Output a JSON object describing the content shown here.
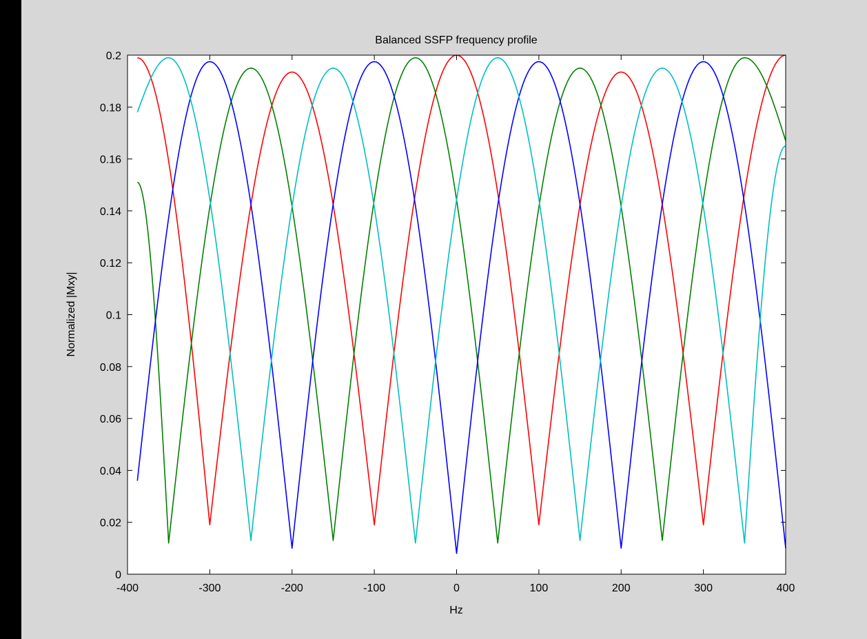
{
  "colors": {
    "window_background": "#000000",
    "figure_background": "#d7d7d7",
    "axes_background": "#ffffff",
    "axes_color": "#000000"
  },
  "chart_data": {
    "type": "line",
    "title": "Balanced SSFP frequency profile",
    "xlabel": "Hz",
    "ylabel": "Normalized |Mxy|",
    "xlim": [
      -400,
      400
    ],
    "ylim": [
      0,
      0.2
    ],
    "xticks": [
      -400,
      -300,
      -200,
      -100,
      0,
      100,
      200,
      300,
      400
    ],
    "yticks": [
      0,
      0.02,
      0.04,
      0.06,
      0.08,
      0.1,
      0.12,
      0.14,
      0.16,
      0.18,
      0.2
    ],
    "xtick_labels": [
      "-400",
      "-300",
      "-200",
      "-100",
      "0",
      "100",
      "200",
      "300",
      "400"
    ],
    "ytick_labels": [
      "0",
      "0.02",
      "0.04",
      "0.06",
      "0.08",
      "0.1",
      "0.12",
      "0.14",
      "0.16",
      "0.18",
      "0.2"
    ],
    "grid": false,
    "legend": "none",
    "series": [
      {
        "color": "#ff0000",
        "peaks": [
          [
            -400,
            0.2
          ],
          [
            -200,
            0.1935
          ],
          [
            0,
            0.2
          ],
          [
            200,
            0.1935
          ],
          [
            400,
            0.2
          ]
        ],
        "valleys": [
          [
            -300,
            0.019
          ],
          [
            -100,
            0.019
          ],
          [
            100,
            0.019
          ],
          [
            300,
            0.019
          ]
        ],
        "x": [
          -388,
          -300,
          -200,
          -100,
          0,
          100,
          200,
          300,
          400
        ],
        "y": [
          0.199,
          0.019,
          0.1935,
          0.019,
          0.2,
          0.019,
          0.1935,
          0.019,
          0.2
        ]
      },
      {
        "color": "#008000",
        "peaks": [
          [
            -250,
            0.195
          ],
          [
            -50,
            0.199
          ],
          [
            150,
            0.195
          ],
          [
            350,
            0.199
          ]
        ],
        "valleys": [
          [
            -350,
            0.012
          ],
          [
            -150,
            0.013
          ],
          [
            50,
            0.012
          ],
          [
            250,
            0.013
          ]
        ],
        "x": [
          -388,
          -350,
          -250,
          -150,
          -50,
          50,
          150,
          250,
          350,
          400
        ],
        "y": [
          0.151,
          0.012,
          0.195,
          0.013,
          0.199,
          0.012,
          0.195,
          0.013,
          0.199,
          0.167
        ]
      },
      {
        "color": "#0000ff",
        "peaks": [
          [
            -300,
            0.1975
          ],
          [
            -100,
            0.1975
          ],
          [
            100,
            0.1975
          ],
          [
            300,
            0.1975
          ]
        ],
        "valleys": [
          [
            -200,
            0.01
          ],
          [
            0,
            0.008
          ],
          [
            200,
            0.01
          ],
          [
            400,
            0.01
          ]
        ],
        "x": [
          -388,
          -300,
          -200,
          -100,
          0,
          100,
          200,
          300,
          400
        ],
        "y": [
          0.036,
          0.1975,
          0.01,
          0.1975,
          0.008,
          0.1975,
          0.01,
          0.1975,
          0.01
        ]
      },
      {
        "color": "#00bfbf",
        "peaks": [
          [
            -350,
            0.199
          ],
          [
            -150,
            0.195
          ],
          [
            50,
            0.199
          ],
          [
            250,
            0.195
          ]
        ],
        "valleys": [
          [
            -250,
            0.013
          ],
          [
            -50,
            0.012
          ],
          [
            150,
            0.013
          ],
          [
            350,
            0.012
          ]
        ],
        "x": [
          -388,
          -350,
          -250,
          -150,
          -50,
          50,
          150,
          250,
          350,
          400
        ],
        "y": [
          0.178,
          0.199,
          0.013,
          0.195,
          0.012,
          0.199,
          0.013,
          0.195,
          0.012,
          0.165
        ]
      }
    ]
  }
}
